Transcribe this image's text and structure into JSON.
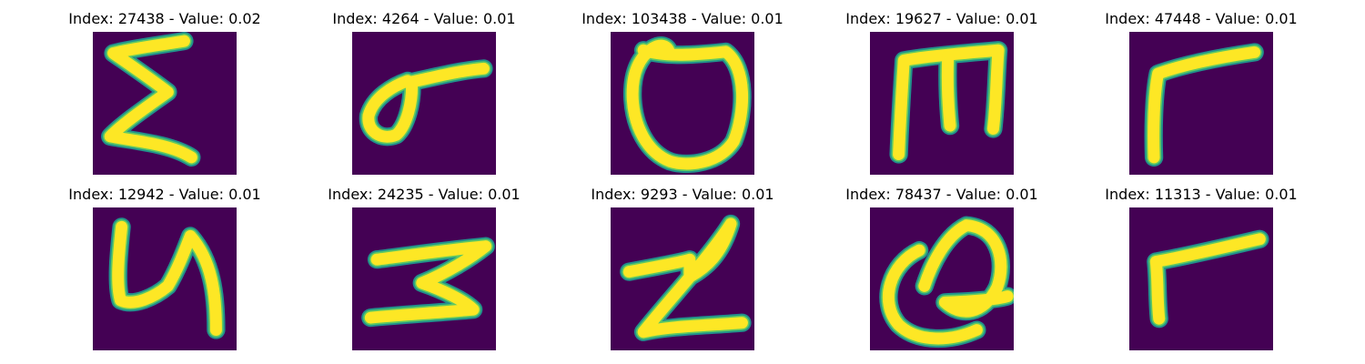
{
  "chart_data": {
    "type": "image-grid",
    "rows": 2,
    "columns": 5,
    "colors": {
      "background": "#440154",
      "stroke_edge": "#21918c",
      "stroke_mid": "#5ec962",
      "stroke_core": "#fde725"
    },
    "panels": [
      {
        "title": "Index: 27438 - Value: 0.02",
        "index": 27438,
        "value": 0.02,
        "glyph": "sigma"
      },
      {
        "title": "Index: 4264 - Value: 0.01",
        "index": 4264,
        "value": 0.01,
        "glyph": "loop-tail"
      },
      {
        "title": "Index: 103438 - Value: 0.01",
        "index": 103438,
        "value": 0.01,
        "glyph": "shield-loop"
      },
      {
        "title": "Index: 19627 - Value: 0.01",
        "index": 19627,
        "value": 0.01,
        "glyph": "m-shape"
      },
      {
        "title": "Index: 47448 - Value: 0.01",
        "index": 47448,
        "value": 0.01,
        "glyph": "gamma"
      },
      {
        "title": "Index: 12942 - Value: 0.01",
        "index": 12942,
        "value": 0.01,
        "glyph": "u-hook"
      },
      {
        "title": "Index: 24235 - Value: 0.01",
        "index": 24235,
        "value": 0.01,
        "glyph": "z-flat"
      },
      {
        "title": "Index: 9293 - Value: 0.01",
        "index": 9293,
        "value": 0.01,
        "glyph": "z-bolt"
      },
      {
        "title": "Index: 78437 - Value: 0.01",
        "index": 78437,
        "value": 0.01,
        "glyph": "q-loop"
      },
      {
        "title": "Index: 11313 - Value: 0.01",
        "index": 11313,
        "value": 0.01,
        "glyph": "gamma-small"
      }
    ]
  }
}
